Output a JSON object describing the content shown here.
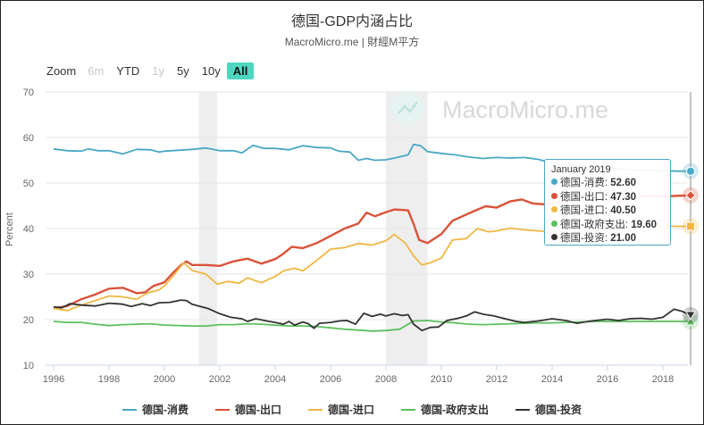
{
  "header": {
    "title": "德国-GDP内涵占比",
    "subtitle": "MacroMicro.me | 財經M平方"
  },
  "watermark": "MacroMicro.me",
  "zoom": {
    "label": "Zoom",
    "buttons": [
      {
        "label": "6m",
        "state": "disabled"
      },
      {
        "label": "YTD",
        "state": "normal"
      },
      {
        "label": "1y",
        "state": "disabled"
      },
      {
        "label": "5y",
        "state": "normal"
      },
      {
        "label": "10y",
        "state": "normal"
      },
      {
        "label": "All",
        "state": "active"
      }
    ]
  },
  "tooltip": {
    "title": "January 2019",
    "rows": [
      {
        "name": "德国-消费:",
        "value": "52.60",
        "color": "#4aa8c4"
      },
      {
        "name": "德国-出口:",
        "value": "47.30",
        "color": "#d9533a"
      },
      {
        "name": "德国-进口:",
        "value": "40.50",
        "color": "#f0b743"
      },
      {
        "name": "德国-政府支出:",
        "value": "19.60",
        "color": "#5cbf5c"
      },
      {
        "name": "德国-投资:",
        "value": "21.00",
        "color": "#333333"
      }
    ]
  },
  "chart_data": {
    "type": "line",
    "ylabel": "Percent",
    "ylim": [
      10,
      70
    ],
    "yticks": [
      10,
      20,
      30,
      40,
      50,
      60,
      70
    ],
    "xlim": [
      1995.8,
      2019.1
    ],
    "xticks": [
      1996,
      1998,
      2000,
      2002,
      2004,
      2006,
      2008,
      2010,
      2012,
      2014,
      2016,
      2018
    ],
    "grid": "horizontal",
    "recession_bands": [
      [
        2001.25,
        2001.9
      ],
      [
        2008.0,
        2009.5
      ]
    ],
    "crosshair_x": 2019.0,
    "legend_position": "bottom",
    "series": [
      {
        "name": "德国-消费",
        "color": "#4aa8c4",
        "points": [
          [
            1996,
            57.5
          ],
          [
            1996.5,
            57.1
          ],
          [
            1997,
            57.0
          ],
          [
            1997.25,
            57.5
          ],
          [
            1997.6,
            57.1
          ],
          [
            1998,
            57.1
          ],
          [
            1998.5,
            56.4
          ],
          [
            1999,
            57.4
          ],
          [
            1999.5,
            57.3
          ],
          [
            1999.8,
            56.8
          ],
          [
            2000,
            57.0
          ],
          [
            2000.5,
            57.2
          ],
          [
            2001,
            57.4
          ],
          [
            2001.5,
            57.7
          ],
          [
            2002,
            57.1
          ],
          [
            2002.5,
            57.1
          ],
          [
            2002.8,
            56.6
          ],
          [
            2003.2,
            58.3
          ],
          [
            2003.6,
            57.6
          ],
          [
            2004,
            57.6
          ],
          [
            2004.5,
            57.3
          ],
          [
            2005,
            58.2
          ],
          [
            2005.5,
            57.8
          ],
          [
            2006,
            57.7
          ],
          [
            2006.3,
            57.0
          ],
          [
            2006.7,
            56.8
          ],
          [
            2007,
            55.0
          ],
          [
            2007.3,
            55.4
          ],
          [
            2007.6,
            55.0
          ],
          [
            2008,
            55.1
          ],
          [
            2008.4,
            55.6
          ],
          [
            2008.8,
            56.2
          ],
          [
            2009,
            58.5
          ],
          [
            2009.25,
            58.2
          ],
          [
            2009.5,
            56.9
          ],
          [
            2010,
            56.5
          ],
          [
            2010.5,
            56.2
          ],
          [
            2011,
            55.7
          ],
          [
            2011.5,
            55.4
          ],
          [
            2012,
            55.6
          ],
          [
            2012.5,
            55.5
          ],
          [
            2013,
            55.6
          ],
          [
            2013.5,
            55.2
          ],
          [
            2014,
            54.4
          ],
          [
            2014.5,
            54.1
          ],
          [
            2015,
            53.8
          ],
          [
            2015.5,
            53.5
          ],
          [
            2016,
            53.4
          ],
          [
            2016.5,
            53.0
          ],
          [
            2017,
            52.9
          ],
          [
            2017.5,
            52.8
          ],
          [
            2018,
            52.7
          ],
          [
            2018.5,
            52.6
          ],
          [
            2019,
            52.6
          ]
        ]
      },
      {
        "name": "德国-出口",
        "color": "#d9533a",
        "points": [
          [
            1996,
            22.5
          ],
          [
            1996.5,
            23.0
          ],
          [
            1997,
            24.5
          ],
          [
            1997.5,
            25.5
          ],
          [
            1998,
            26.8
          ],
          [
            1998.5,
            27.0
          ],
          [
            1999,
            25.8
          ],
          [
            1999.3,
            26.0
          ],
          [
            1999.6,
            27.4
          ],
          [
            2000,
            28.2
          ],
          [
            2000.3,
            30.2
          ],
          [
            2000.6,
            32.0
          ],
          [
            2000.8,
            32.8
          ],
          [
            2001,
            32.0
          ],
          [
            2001.5,
            32.0
          ],
          [
            2002,
            31.8
          ],
          [
            2002.5,
            32.8
          ],
          [
            2003,
            33.4
          ],
          [
            2003.5,
            32.3
          ],
          [
            2004,
            33.3
          ],
          [
            2004.3,
            34.5
          ],
          [
            2004.6,
            36.0
          ],
          [
            2005,
            35.7
          ],
          [
            2005.5,
            36.8
          ],
          [
            2006,
            38.4
          ],
          [
            2006.5,
            40.0
          ],
          [
            2007,
            41.1
          ],
          [
            2007.3,
            43.5
          ],
          [
            2007.6,
            42.7
          ],
          [
            2008,
            43.6
          ],
          [
            2008.3,
            44.2
          ],
          [
            2008.8,
            44.0
          ],
          [
            2009,
            41.0
          ],
          [
            2009.2,
            37.5
          ],
          [
            2009.5,
            36.8
          ],
          [
            2010,
            38.8
          ],
          [
            2010.4,
            41.7
          ],
          [
            2010.8,
            42.8
          ],
          [
            2011.2,
            43.9
          ],
          [
            2011.6,
            44.9
          ],
          [
            2012,
            44.6
          ],
          [
            2012.5,
            46.0
          ],
          [
            2012.9,
            46.4
          ],
          [
            2013.3,
            45.5
          ],
          [
            2013.8,
            45.3
          ],
          [
            2014.2,
            45.9
          ],
          [
            2014.7,
            46.2
          ],
          [
            2015,
            46.5
          ],
          [
            2015.5,
            46.6
          ],
          [
            2016,
            46.3
          ],
          [
            2016.5,
            46.0
          ],
          [
            2017,
            46.8
          ],
          [
            2017.5,
            47.2
          ],
          [
            2018,
            47.0
          ],
          [
            2018.5,
            47.2
          ],
          [
            2019,
            47.3
          ]
        ]
      },
      {
        "name": "德国-进口",
        "color": "#f0b743",
        "points": [
          [
            1996,
            22.5
          ],
          [
            1996.5,
            22.0
          ],
          [
            1997,
            23.2
          ],
          [
            1997.5,
            24.2
          ],
          [
            1998,
            25.2
          ],
          [
            1998.5,
            25.0
          ],
          [
            1999,
            24.5
          ],
          [
            1999.4,
            25.9
          ],
          [
            1999.8,
            26.5
          ],
          [
            2000,
            27.4
          ],
          [
            2000.3,
            29.5
          ],
          [
            2000.7,
            32.5
          ],
          [
            2001,
            30.8
          ],
          [
            2001.5,
            30.0
          ],
          [
            2001.9,
            27.8
          ],
          [
            2002.3,
            28.4
          ],
          [
            2002.7,
            28.0
          ],
          [
            2003,
            29.2
          ],
          [
            2003.5,
            28.1
          ],
          [
            2004,
            29.5
          ],
          [
            2004.3,
            30.7
          ],
          [
            2004.7,
            31.3
          ],
          [
            2005,
            30.7
          ],
          [
            2005.5,
            33.0
          ],
          [
            2006,
            35.5
          ],
          [
            2006.5,
            35.8
          ],
          [
            2007,
            36.7
          ],
          [
            2007.5,
            36.4
          ],
          [
            2008,
            37.3
          ],
          [
            2008.3,
            38.7
          ],
          [
            2008.7,
            36.8
          ],
          [
            2009,
            34.0
          ],
          [
            2009.3,
            32.0
          ],
          [
            2009.6,
            32.5
          ],
          [
            2010,
            33.5
          ],
          [
            2010.4,
            37.5
          ],
          [
            2010.9,
            37.8
          ],
          [
            2011.3,
            40.0
          ],
          [
            2011.7,
            39.3
          ],
          [
            2012,
            39.5
          ],
          [
            2012.5,
            40.1
          ],
          [
            2013,
            39.7
          ],
          [
            2013.5,
            39.5
          ],
          [
            2014,
            39.3
          ],
          [
            2014.5,
            39.0
          ],
          [
            2015,
            39.2
          ],
          [
            2015.5,
            39.5
          ],
          [
            2016,
            39.6
          ],
          [
            2016.5,
            39.8
          ],
          [
            2017,
            40.1
          ],
          [
            2017.5,
            40.3
          ],
          [
            2018,
            40.6
          ],
          [
            2018.5,
            40.5
          ],
          [
            2019,
            40.5
          ]
        ]
      },
      {
        "name": "德国-政府支出",
        "color": "#5cbf5c",
        "points": [
          [
            1996,
            19.6
          ],
          [
            1996.5,
            19.4
          ],
          [
            1997,
            19.4
          ],
          [
            1997.5,
            19.0
          ],
          [
            1998,
            18.7
          ],
          [
            1998.5,
            18.9
          ],
          [
            1999,
            19.0
          ],
          [
            1999.5,
            19.1
          ],
          [
            2000,
            18.8
          ],
          [
            2000.5,
            18.7
          ],
          [
            2001,
            18.6
          ],
          [
            2001.5,
            18.6
          ],
          [
            2002,
            18.9
          ],
          [
            2002.5,
            18.9
          ],
          [
            2003,
            19.1
          ],
          [
            2003.5,
            19.0
          ],
          [
            2004,
            18.8
          ],
          [
            2004.5,
            18.6
          ],
          [
            2005,
            18.6
          ],
          [
            2005.5,
            18.5
          ],
          [
            2006,
            18.2
          ],
          [
            2006.5,
            17.9
          ],
          [
            2007,
            17.7
          ],
          [
            2007.5,
            17.5
          ],
          [
            2008,
            17.6
          ],
          [
            2008.5,
            17.9
          ],
          [
            2009,
            19.7
          ],
          [
            2009.5,
            19.8
          ],
          [
            2010,
            19.5
          ],
          [
            2010.5,
            19.3
          ],
          [
            2011,
            19.0
          ],
          [
            2011.5,
            18.9
          ],
          [
            2012,
            19.0
          ],
          [
            2012.5,
            19.1
          ],
          [
            2013,
            19.2
          ],
          [
            2013.5,
            19.3
          ],
          [
            2014,
            19.3
          ],
          [
            2014.5,
            19.4
          ],
          [
            2015,
            19.5
          ],
          [
            2015.5,
            19.6
          ],
          [
            2016,
            19.6
          ],
          [
            2016.5,
            19.6
          ],
          [
            2017,
            19.6
          ],
          [
            2017.5,
            19.6
          ],
          [
            2018,
            19.6
          ],
          [
            2018.5,
            19.6
          ],
          [
            2019,
            19.6
          ]
        ]
      },
      {
        "name": "德国-投资",
        "color": "#333333",
        "points": [
          [
            1996,
            22.8
          ],
          [
            1996.3,
            22.6
          ],
          [
            1996.6,
            23.5
          ],
          [
            1997,
            23.2
          ],
          [
            1997.5,
            23.0
          ],
          [
            1998,
            23.6
          ],
          [
            1998.5,
            23.4
          ],
          [
            1998.8,
            22.9
          ],
          [
            1999.2,
            23.5
          ],
          [
            1999.5,
            23.1
          ],
          [
            1999.8,
            23.7
          ],
          [
            2000.2,
            23.8
          ],
          [
            2000.6,
            24.3
          ],
          [
            2000.8,
            24.2
          ],
          [
            2001,
            23.4
          ],
          [
            2001.3,
            22.9
          ],
          [
            2001.6,
            22.4
          ],
          [
            2002,
            21.3
          ],
          [
            2002.4,
            20.5
          ],
          [
            2002.8,
            20.2
          ],
          [
            2003,
            19.6
          ],
          [
            2003.3,
            20.2
          ],
          [
            2003.7,
            19.7
          ],
          [
            2004,
            19.4
          ],
          [
            2004.3,
            19.0
          ],
          [
            2004.5,
            19.6
          ],
          [
            2004.7,
            18.8
          ],
          [
            2005,
            19.5
          ],
          [
            2005.2,
            19.1
          ],
          [
            2005.4,
            18.1
          ],
          [
            2005.6,
            19.2
          ],
          [
            2006,
            19.4
          ],
          [
            2006.3,
            19.7
          ],
          [
            2006.6,
            19.8
          ],
          [
            2006.9,
            19.0
          ],
          [
            2007.2,
            21.4
          ],
          [
            2007.5,
            20.7
          ],
          [
            2007.8,
            21.2
          ],
          [
            2008,
            20.8
          ],
          [
            2008.3,
            21.3
          ],
          [
            2008.6,
            20.9
          ],
          [
            2008.8,
            21.1
          ],
          [
            2009,
            19.0
          ],
          [
            2009.3,
            17.6
          ],
          [
            2009.6,
            18.3
          ],
          [
            2009.9,
            18.4
          ],
          [
            2010.2,
            19.8
          ],
          [
            2010.6,
            20.3
          ],
          [
            2010.9,
            20.8
          ],
          [
            2011.2,
            21.7
          ],
          [
            2011.5,
            21.2
          ],
          [
            2011.9,
            20.8
          ],
          [
            2012.3,
            20.2
          ],
          [
            2012.7,
            19.6
          ],
          [
            2013,
            19.4
          ],
          [
            2013.5,
            19.7
          ],
          [
            2014,
            20.2
          ],
          [
            2014.5,
            19.8
          ],
          [
            2014.9,
            19.2
          ],
          [
            2015.3,
            19.6
          ],
          [
            2015.7,
            19.9
          ],
          [
            2016,
            20.1
          ],
          [
            2016.4,
            19.8
          ],
          [
            2016.8,
            20.2
          ],
          [
            2017.2,
            20.3
          ],
          [
            2017.6,
            20.1
          ],
          [
            2018,
            20.5
          ],
          [
            2018.4,
            22.3
          ],
          [
            2018.7,
            21.8
          ],
          [
            2019,
            21.0
          ]
        ]
      }
    ]
  }
}
